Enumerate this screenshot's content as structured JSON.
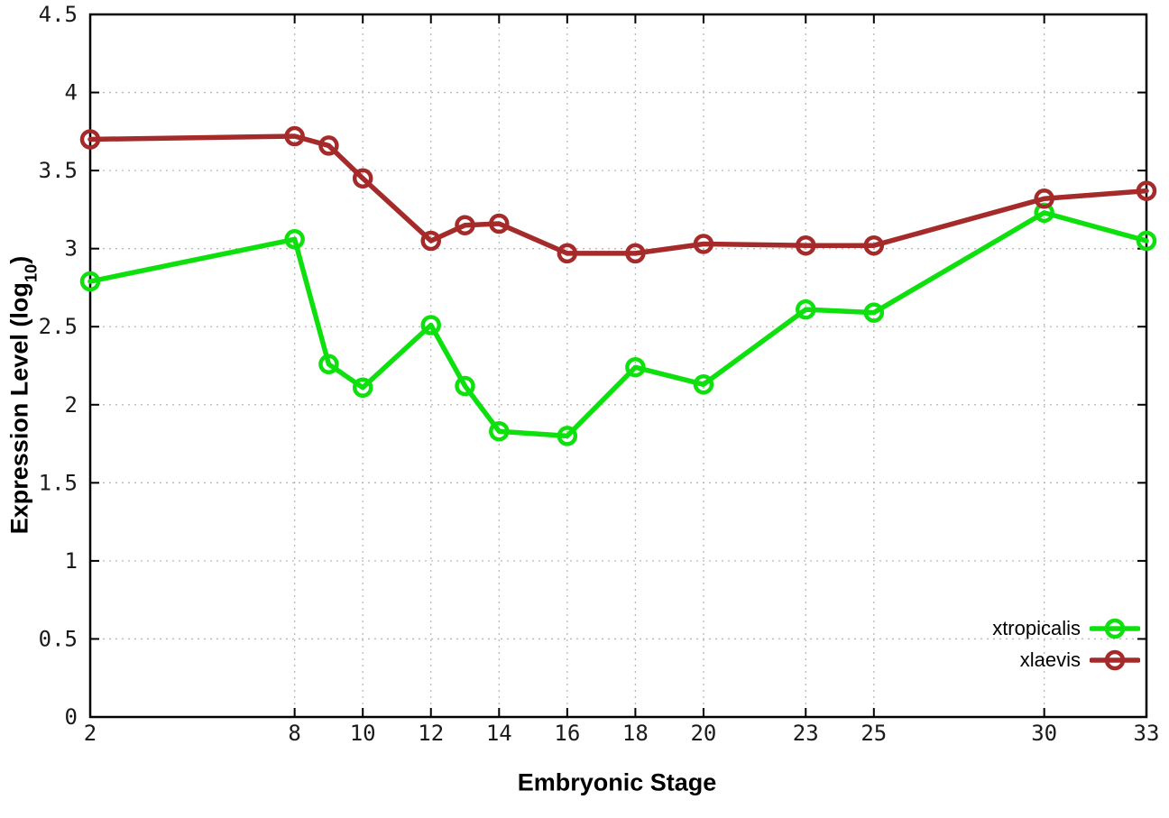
{
  "page": {
    "background": "#ffffff"
  },
  "chart_data": {
    "type": "line",
    "title": "",
    "xlabel": "Embryonic Stage",
    "ylabel": "Expression Level (log10)",
    "ylabel_parts": {
      "pre": "Expression Level (log",
      "sub": "10",
      "post": ")"
    },
    "xlim": [
      2,
      33
    ],
    "ylim": [
      0,
      4.5
    ],
    "x": [
      2,
      8,
      9,
      10,
      12,
      13,
      14,
      16,
      18,
      20,
      23,
      25,
      30,
      33
    ],
    "xticks": [
      2,
      8,
      10,
      12,
      14,
      16,
      18,
      20,
      23,
      25,
      30,
      33
    ],
    "yticks": [
      0,
      0.5,
      1,
      1.5,
      2,
      2.5,
      3,
      3.5,
      4,
      4.5
    ],
    "grid": true,
    "legend_position": "bottom-right",
    "axis_color": "#000000",
    "grid_color": "#b8b8b8",
    "tick_label_color": "#1a1a1a",
    "series": [
      {
        "name": "xtropicalis",
        "color": "#0ee00e",
        "marker": "open-circle",
        "values": [
          2.79,
          3.06,
          2.26,
          2.11,
          2.51,
          2.12,
          1.83,
          1.8,
          2.24,
          2.13,
          2.61,
          2.59,
          3.23,
          3.05
        ]
      },
      {
        "name": "xlaevis",
        "color": "#a52a2a",
        "marker": "open-circle",
        "values": [
          3.7,
          3.72,
          3.66,
          3.45,
          3.05,
          3.15,
          3.16,
          2.97,
          2.97,
          3.03,
          3.02,
          3.02,
          3.32,
          3.37
        ]
      }
    ]
  }
}
